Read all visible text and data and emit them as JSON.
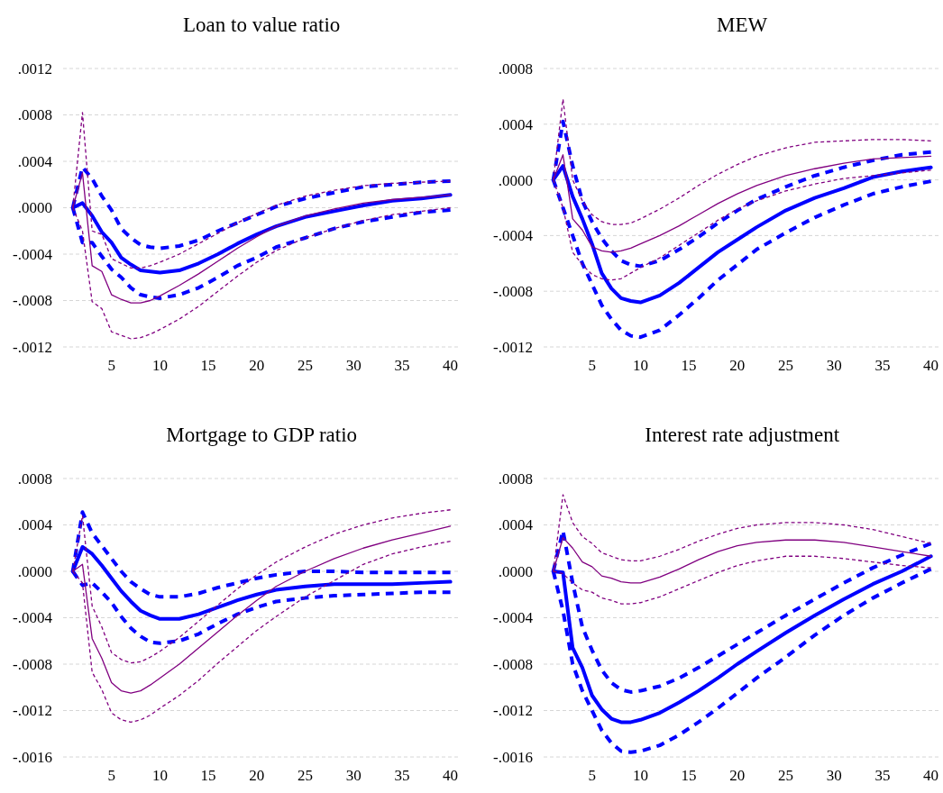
{
  "chart_data": [
    {
      "type": "line",
      "title": "Loan to value ratio",
      "x": [
        1,
        2,
        3,
        4,
        5,
        6,
        7,
        8,
        9,
        10,
        12,
        14,
        16,
        18,
        20,
        22,
        25,
        28,
        31,
        34,
        37,
        40
      ],
      "xlim": [
        0,
        41
      ],
      "xticks": [
        5,
        10,
        15,
        20,
        25,
        30,
        35,
        40
      ],
      "ylim": [
        -0.0012,
        0.0012
      ],
      "yticks": [
        {
          "value": -0.0012,
          "label": "-.0012"
        },
        {
          "value": -0.0008,
          "label": "-.0008"
        },
        {
          "value": -0.0004,
          "label": "-.0004"
        },
        {
          "value": 0,
          "label": ".0000"
        },
        {
          "value": 0.0004,
          "label": ".0004"
        },
        {
          "value": 0.0008,
          "label": ".0008"
        },
        {
          "value": 0.0012,
          "label": ".0012"
        }
      ],
      "grid": "y",
      "series": [
        {
          "color": "#800080",
          "line_style": "solid",
          "values": [
            0,
            0.0003,
            -0.0005,
            -0.00055,
            -0.00075,
            -0.00079,
            -0.00082,
            -0.00082,
            -0.0008,
            -0.00076,
            -0.00067,
            -0.00057,
            -0.00046,
            -0.00035,
            -0.00025,
            -0.00016,
            -7e-05,
            -1e-05,
            4e-05,
            7e-05,
            9e-05,
            0.00011
          ]
        },
        {
          "color": "#800080",
          "line_style": "dashed",
          "values": [
            0,
            0.00082,
            -0.0002,
            -0.00023,
            -0.00044,
            -0.00048,
            -0.00052,
            -0.00052,
            -0.0005,
            -0.00047,
            -0.0004,
            -0.00031,
            -0.00022,
            -0.00013,
            -5e-05,
            2e-05,
            0.0001,
            0.00015,
            0.00019,
            0.00021,
            0.00022,
            0.00023
          ]
        },
        {
          "color": "#800080",
          "line_style": "dashed",
          "values": [
            0,
            -0.0002,
            -0.00081,
            -0.00087,
            -0.00107,
            -0.0011,
            -0.00113,
            -0.00112,
            -0.00109,
            -0.00105,
            -0.00096,
            -0.00085,
            -0.00072,
            -0.00059,
            -0.00047,
            -0.00037,
            -0.00026,
            -0.00018,
            -0.00011,
            -6e-05,
            -3e-05,
            0
          ]
        },
        {
          "color": "#0000ff",
          "line_style": "solid",
          "values": [
            0,
            4e-05,
            -7e-05,
            -0.00021,
            -0.0003,
            -0.00043,
            -0.00049,
            -0.00054,
            -0.00055,
            -0.00056,
            -0.00054,
            -0.00048,
            -0.0004,
            -0.00031,
            -0.00023,
            -0.00016,
            -8e-05,
            -3e-05,
            2e-05,
            6e-05,
            8e-05,
            0.00011
          ]
        },
        {
          "color": "#0000ff",
          "line_style": "dashed",
          "values": [
            0,
            0.00035,
            0.00025,
            0.0001,
            -2e-05,
            -0.00018,
            -0.00026,
            -0.00032,
            -0.00034,
            -0.00035,
            -0.00033,
            -0.00028,
            -0.0002,
            -0.00013,
            -6e-05,
            1e-05,
            8e-05,
            0.00013,
            0.00018,
            0.0002,
            0.00022,
            0.00023
          ]
        },
        {
          "color": "#0000ff",
          "line_style": "dashed",
          "values": [
            0,
            -0.0003,
            -0.0003,
            -0.00042,
            -0.00053,
            -0.0006,
            -0.00069,
            -0.00075,
            -0.00077,
            -0.00078,
            -0.00075,
            -0.00069,
            -0.0006,
            -0.0005,
            -0.00043,
            -0.00034,
            -0.00026,
            -0.00018,
            -0.00012,
            -8e-05,
            -4e-05,
            -2e-05
          ]
        }
      ]
    },
    {
      "type": "line",
      "title": "MEW",
      "x": [
        1,
        2,
        3,
        4,
        5,
        6,
        7,
        8,
        9,
        10,
        12,
        14,
        16,
        18,
        20,
        22,
        25,
        28,
        31,
        34,
        37,
        40
      ],
      "xlim": [
        0,
        41
      ],
      "xticks": [
        5,
        10,
        15,
        20,
        25,
        30,
        35,
        40
      ],
      "ylim": [
        -0.0012,
        0.0008
      ],
      "yticks": [
        {
          "value": -0.0012,
          "label": "-.0012"
        },
        {
          "value": -0.0008,
          "label": "-.0008"
        },
        {
          "value": -0.0004,
          "label": "-.0004"
        },
        {
          "value": 0,
          "label": ".0000"
        },
        {
          "value": 0.0004,
          "label": ".0004"
        },
        {
          "value": 0.0008,
          "label": ".0008"
        }
      ],
      "grid": "y",
      "series": [
        {
          "color": "#800080",
          "line_style": "solid",
          "values": [
            0,
            0.00018,
            -0.00028,
            -0.00036,
            -0.00048,
            -0.00051,
            -0.00052,
            -0.00051,
            -0.00049,
            -0.00046,
            -0.0004,
            -0.00033,
            -0.00025,
            -0.00017,
            -0.0001,
            -4e-05,
            3e-05,
            8e-05,
            0.00012,
            0.00015,
            0.00016,
            0.00017
          ]
        },
        {
          "color": "#800080",
          "line_style": "dashed",
          "values": [
            0,
            0.00058,
            0,
            -0.00015,
            -0.00025,
            -0.0003,
            -0.00032,
            -0.00032,
            -0.00031,
            -0.00028,
            -0.00021,
            -0.00013,
            -4e-05,
            4e-05,
            0.00011,
            0.00017,
            0.00023,
            0.00027,
            0.00028,
            0.00029,
            0.00029,
            0.00028
          ]
        },
        {
          "color": "#800080",
          "line_style": "dashed",
          "values": [
            0,
            -0.0002,
            -0.00052,
            -0.00061,
            -0.00068,
            -0.00071,
            -0.00072,
            -0.00071,
            -0.00067,
            -0.00063,
            -0.00056,
            -0.00047,
            -0.00038,
            -0.00029,
            -0.00021,
            -0.00015,
            -8e-05,
            -3e-05,
            1e-05,
            3e-05,
            5e-05,
            7e-05
          ]
        },
        {
          "color": "#0000ff",
          "line_style": "solid",
          "values": [
            0,
            0.0001,
            -0.00012,
            -0.00028,
            -0.00046,
            -0.00067,
            -0.00078,
            -0.00085,
            -0.00087,
            -0.00088,
            -0.00083,
            -0.00074,
            -0.00063,
            -0.00052,
            -0.00043,
            -0.00034,
            -0.00022,
            -0.00013,
            -6e-05,
            2e-05,
            6e-05,
            9e-05
          ]
        },
        {
          "color": "#0000ff",
          "line_style": "dashed",
          "values": [
            0,
            0.00042,
            0.0001,
            -0.00015,
            -0.0003,
            -0.00042,
            -0.00051,
            -0.00058,
            -0.00061,
            -0.00062,
            -0.00058,
            -0.0005,
            -0.00041,
            -0.00031,
            -0.00022,
            -0.00014,
            -5e-05,
            3e-05,
            9e-05,
            0.00014,
            0.00018,
            0.0002
          ]
        },
        {
          "color": "#0000ff",
          "line_style": "dashed",
          "values": [
            0,
            -0.0002,
            -0.0004,
            -0.0006,
            -0.00075,
            -0.0009,
            -0.001,
            -0.00108,
            -0.00112,
            -0.00113,
            -0.00108,
            -0.00097,
            -0.00085,
            -0.00072,
            -0.00061,
            -0.0005,
            -0.00038,
            -0.00027,
            -0.00018,
            -0.0001,
            -5e-05,
            -1e-05
          ]
        }
      ]
    },
    {
      "type": "line",
      "title": "Mortgage to GDP ratio",
      "x": [
        1,
        2,
        3,
        4,
        5,
        6,
        7,
        8,
        9,
        10,
        12,
        14,
        16,
        18,
        20,
        22,
        25,
        28,
        31,
        34,
        37,
        40
      ],
      "xlim": [
        0,
        41
      ],
      "xticks": [
        5,
        10,
        15,
        20,
        25,
        30,
        35,
        40
      ],
      "ylim": [
        -0.0016,
        0.0008
      ],
      "yticks": [
        {
          "value": -0.0016,
          "label": "-.0016"
        },
        {
          "value": -0.0012,
          "label": "-.0012"
        },
        {
          "value": -0.0008,
          "label": "-.0008"
        },
        {
          "value": -0.0004,
          "label": "-.0004"
        },
        {
          "value": 0,
          "label": ".0000"
        },
        {
          "value": 0.0004,
          "label": ".0004"
        },
        {
          "value": 0.0008,
          "label": ".0008"
        }
      ],
      "grid": "y",
      "series": [
        {
          "color": "#800080",
          "line_style": "solid",
          "values": [
            0,
            6e-05,
            -0.00058,
            -0.00075,
            -0.00096,
            -0.00103,
            -0.00105,
            -0.00103,
            -0.00098,
            -0.00092,
            -0.0008,
            -0.00066,
            -0.00052,
            -0.00038,
            -0.00025,
            -0.00013,
            0,
            0.00011,
            0.0002,
            0.00027,
            0.00033,
            0.00039
          ]
        },
        {
          "color": "#800080",
          "line_style": "dashed",
          "values": [
            0,
            0.00048,
            -0.0003,
            -0.00048,
            -0.0007,
            -0.00076,
            -0.00079,
            -0.00078,
            -0.00074,
            -0.00069,
            -0.00057,
            -0.00043,
            -0.00029,
            -0.00015,
            -3e-05,
            8e-05,
            0.00021,
            0.00032,
            0.0004,
            0.00046,
            0.0005,
            0.00053
          ]
        },
        {
          "color": "#800080",
          "line_style": "dashed",
          "values": [
            0,
            -0.0001,
            -0.00087,
            -0.00102,
            -0.00122,
            -0.00128,
            -0.0013,
            -0.00128,
            -0.00124,
            -0.00118,
            -0.00107,
            -0.00094,
            -0.00079,
            -0.00065,
            -0.00051,
            -0.00039,
            -0.00022,
            -8e-05,
            6e-05,
            0.00015,
            0.00021,
            0.00026
          ]
        },
        {
          "color": "#0000ff",
          "line_style": "solid",
          "values": [
            0,
            0.00021,
            0.00015,
            5e-05,
            -6e-05,
            -0.00017,
            -0.00026,
            -0.00034,
            -0.00038,
            -0.00041,
            -0.00041,
            -0.00037,
            -0.00031,
            -0.00025,
            -0.0002,
            -0.00016,
            -0.00013,
            -0.00011,
            -0.00011,
            -0.00011,
            -0.0001,
            -9e-05
          ]
        },
        {
          "color": "#0000ff",
          "line_style": "dashed",
          "values": [
            0,
            0.00051,
            0.00033,
            0.00022,
            0.00011,
            0,
            -9e-05,
            -0.00015,
            -0.0002,
            -0.00022,
            -0.00022,
            -0.00019,
            -0.00014,
            -0.0001,
            -6e-05,
            -3e-05,
            0,
            0,
            -1e-05,
            -1e-05,
            -1e-05,
            -1e-05
          ]
        },
        {
          "color": "#0000ff",
          "line_style": "dashed",
          "values": [
            0,
            -0.00012,
            -0.0001,
            -0.00018,
            -0.00027,
            -0.00039,
            -0.00049,
            -0.00056,
            -0.00061,
            -0.00062,
            -0.0006,
            -0.00054,
            -0.00045,
            -0.00037,
            -0.00031,
            -0.00026,
            -0.00023,
            -0.00021,
            -0.0002,
            -0.00019,
            -0.00018,
            -0.00018
          ]
        }
      ]
    },
    {
      "type": "line",
      "title": "Interest rate adjustment",
      "x": [
        1,
        2,
        3,
        4,
        5,
        6,
        7,
        8,
        9,
        10,
        12,
        14,
        16,
        18,
        20,
        22,
        25,
        28,
        31,
        34,
        37,
        40
      ],
      "xlim": [
        0,
        41
      ],
      "xticks": [
        5,
        10,
        15,
        20,
        25,
        30,
        35,
        40
      ],
      "ylim": [
        -0.0016,
        0.0008
      ],
      "yticks": [
        {
          "value": -0.0016,
          "label": "-.0016"
        },
        {
          "value": -0.0012,
          "label": "-.0012"
        },
        {
          "value": -0.0008,
          "label": "-.0008"
        },
        {
          "value": -0.0004,
          "label": "-.0004"
        },
        {
          "value": 0,
          "label": ".0000"
        },
        {
          "value": 0.0004,
          "label": ".0004"
        },
        {
          "value": 0.0008,
          "label": ".0008"
        }
      ],
      "grid": "y",
      "series": [
        {
          "color": "#800080",
          "line_style": "solid",
          "values": [
            0,
            0.00029,
            0.0002,
            8e-05,
            4e-05,
            -4e-05,
            -6e-05,
            -9e-05,
            -0.0001,
            -0.0001,
            -5e-05,
            2e-05,
            0.0001,
            0.00017,
            0.00022,
            0.00025,
            0.00027,
            0.00027,
            0.00025,
            0.00021,
            0.00017,
            0.00013
          ]
        },
        {
          "color": "#800080",
          "line_style": "dashed",
          "values": [
            0,
            0.00066,
            0.00042,
            0.0003,
            0.00024,
            0.00016,
            0.00013,
            0.0001,
            9e-05,
            9e-05,
            0.00013,
            0.00019,
            0.00026,
            0.00032,
            0.00037,
            0.0004,
            0.00042,
            0.00042,
            0.0004,
            0.00036,
            0.0003,
            0.00024
          ]
        },
        {
          "color": "#800080",
          "line_style": "dashed",
          "values": [
            0,
            -2e-05,
            -0.0001,
            -0.00016,
            -0.00018,
            -0.00023,
            -0.00025,
            -0.00028,
            -0.00028,
            -0.00027,
            -0.00022,
            -0.00015,
            -8e-05,
            -1e-05,
            5e-05,
            9e-05,
            0.00013,
            0.00013,
            0.00011,
            8e-05,
            5e-05,
            3e-05
          ]
        },
        {
          "color": "#0000ff",
          "line_style": "solid",
          "values": [
            0,
            -1e-05,
            -0.00066,
            -0.00083,
            -0.00107,
            -0.00119,
            -0.00127,
            -0.0013,
            -0.0013,
            -0.00128,
            -0.00122,
            -0.00113,
            -0.00103,
            -0.00092,
            -0.0008,
            -0.00069,
            -0.00053,
            -0.00038,
            -0.00024,
            -0.00011,
            0,
            0.00013
          ]
        },
        {
          "color": "#0000ff",
          "line_style": "dashed",
          "values": [
            0,
            0.00035,
            -0.0001,
            -0.00048,
            -0.00068,
            -0.00085,
            -0.00096,
            -0.00102,
            -0.00104,
            -0.00103,
            -0.00099,
            -0.00092,
            -0.00083,
            -0.00073,
            -0.00063,
            -0.00053,
            -0.00038,
            -0.00024,
            -0.0001,
            3e-05,
            0.00014,
            0.00024
          ]
        },
        {
          "color": "#0000ff",
          "line_style": "dashed",
          "values": [
            0,
            -0.00034,
            -0.0008,
            -0.00103,
            -0.0012,
            -0.00137,
            -0.00148,
            -0.00155,
            -0.00156,
            -0.00155,
            -0.0015,
            -0.00141,
            -0.0013,
            -0.00118,
            -0.00105,
            -0.00092,
            -0.00074,
            -0.00055,
            -0.00038,
            -0.00023,
            -0.0001,
            2e-05
          ]
        }
      ]
    }
  ]
}
